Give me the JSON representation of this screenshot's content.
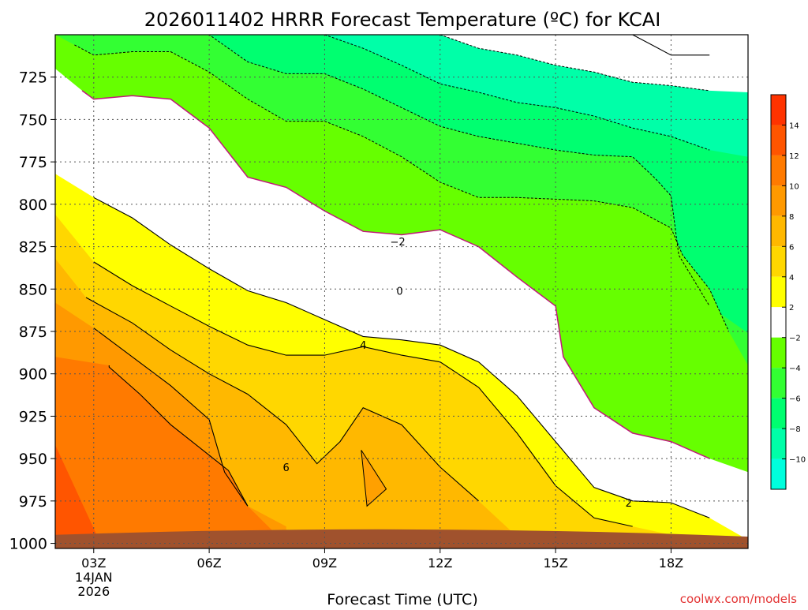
{
  "chart_data": {
    "type": "heatmap",
    "title": "2026011402 HRRR Forecast Temperature (ºC) for KCAI",
    "xlabel": "Forecast Time (UTC)",
    "ylabel": "",
    "credit": "coolwx.com/models",
    "x_ticks": [
      "03Z",
      "06Z",
      "09Z",
      "12Z",
      "15Z",
      "18Z"
    ],
    "x_tick_hours": [
      3,
      6,
      9,
      12,
      15,
      18
    ],
    "x_date_labels": [
      "14JAN",
      "2026"
    ],
    "xlim": [
      2.0,
      20.0
    ],
    "y_scale": "pressure (hPa), reversed",
    "y_ticks": [
      725,
      750,
      775,
      800,
      825,
      850,
      875,
      900,
      925,
      950,
      975,
      1000
    ],
    "ylim": [
      1003,
      700
    ],
    "grid": true,
    "colorbar": {
      "bounds": [
        -12,
        -10,
        -8,
        -6,
        -4,
        -2,
        2,
        4,
        6,
        8,
        10,
        12,
        14,
        16
      ],
      "tick_labels": [
        "14",
        "12",
        "10",
        "8",
        "6",
        "4",
        "2",
        "−2",
        "−4",
        "−6",
        "−8",
        "−10"
      ],
      "colors": [
        "#00ffdd",
        "#00ffa8",
        "#00ff70",
        "#33ff33",
        "#66ff00",
        "#ffffff",
        "#ffff00",
        "#ffd700",
        "#ffb800",
        "#ff9900",
        "#ff7a00",
        "#ff5500",
        "#ff3300"
      ]
    },
    "contour_labels": [
      {
        "text": "−2",
        "hour": 10.9,
        "pressure": 822
      },
      {
        "text": "0",
        "hour": 10.95,
        "pressure": 851
      },
      {
        "text": "4",
        "hour": 10.0,
        "pressure": 883
      },
      {
        "text": "6",
        "hour": 8.0,
        "pressure": 955
      },
      {
        "text": "2",
        "hour": 16.9,
        "pressure": 976
      }
    ],
    "temperature_bands": [
      {
        "label": "10 to 12",
        "color": "#ff7a00",
        "pts": [
          [
            2.0,
            1003
          ],
          [
            2.0,
            890
          ],
          [
            3.4,
            895
          ],
          [
            3.4,
            896
          ],
          [
            4.2,
            912
          ],
          [
            5.0,
            930
          ],
          [
            6.0,
            948
          ],
          [
            6.5,
            957
          ],
          [
            7.0,
            978
          ],
          [
            7.8,
            996
          ],
          [
            7.8,
            1003
          ]
        ]
      },
      {
        "label": "12 to 14",
        "color": "#ff5500",
        "pts": [
          [
            2.0,
            1003
          ],
          [
            2.0,
            942
          ],
          [
            3.2,
            1001
          ],
          [
            3.2,
            1003
          ]
        ]
      },
      {
        "label": "8 to 10",
        "color": "#ff9900",
        "pts": [
          [
            2.0,
            1003
          ],
          [
            2.0,
            858
          ],
          [
            3.0,
            873
          ],
          [
            4.0,
            890
          ],
          [
            5.0,
            907
          ],
          [
            6.0,
            927
          ],
          [
            6.4,
            958
          ],
          [
            7.0,
            978
          ],
          [
            8.0,
            990
          ],
          [
            8.0,
            1003
          ]
        ]
      },
      {
        "label": "6 to 8",
        "color": "#ffb800",
        "pts": [
          [
            2.0,
            1003
          ],
          [
            2.0,
            832
          ],
          [
            2.8,
            855
          ],
          [
            4.0,
            870
          ],
          [
            5.0,
            886
          ],
          [
            6.0,
            900
          ],
          [
            7.0,
            912
          ],
          [
            8.0,
            930
          ],
          [
            8.8,
            953
          ],
          [
            9.4,
            940
          ],
          [
            10.0,
            920
          ],
          [
            11.0,
            930
          ],
          [
            12.0,
            955
          ],
          [
            13.0,
            975
          ],
          [
            14.0,
            996
          ],
          [
            14.0,
            1003
          ]
        ]
      },
      {
        "label": "4 to 6",
        "color": "#ffd700",
        "pts": [
          [
            2.0,
            1003
          ],
          [
            2.0,
            806
          ],
          [
            3.0,
            834
          ],
          [
            4.0,
            848
          ],
          [
            5.0,
            860
          ],
          [
            6.0,
            872
          ],
          [
            7.0,
            883
          ],
          [
            8.0,
            889
          ],
          [
            9.0,
            889
          ],
          [
            10.0,
            884
          ],
          [
            11.0,
            889
          ],
          [
            12.0,
            893
          ],
          [
            13.0,
            908
          ],
          [
            14.0,
            935
          ],
          [
            15.0,
            966
          ],
          [
            16.0,
            985
          ],
          [
            17.0,
            990
          ],
          [
            18.0,
            995
          ],
          [
            18.0,
            1003
          ]
        ]
      },
      {
        "label": "2 to 4",
        "color": "#ffff00",
        "pts": [
          [
            2.0,
            1003
          ],
          [
            2.0,
            782
          ],
          [
            3.0,
            796
          ],
          [
            4.0,
            808
          ],
          [
            5.0,
            824
          ],
          [
            6.0,
            838
          ],
          [
            7.0,
            851
          ],
          [
            8.0,
            858
          ],
          [
            9.0,
            868
          ],
          [
            10.0,
            878
          ],
          [
            11.0,
            880
          ],
          [
            12.0,
            883
          ],
          [
            13.0,
            893
          ],
          [
            14.0,
            913
          ],
          [
            15.0,
            940
          ],
          [
            16.0,
            967
          ],
          [
            17.0,
            975
          ],
          [
            18.0,
            976
          ],
          [
            19.0,
            985
          ],
          [
            20.0,
            998
          ],
          [
            20.0,
            1003
          ]
        ]
      },
      {
        "label": "−2 to 2",
        "color": "#ffffff",
        "pts": [
          [
            2.0,
            1003
          ],
          [
            2.0,
            720
          ],
          [
            2.7,
            733
          ],
          [
            3.0,
            738
          ],
          [
            4.0,
            736
          ],
          [
            5.0,
            738
          ],
          [
            6.0,
            755
          ],
          [
            7.0,
            784
          ],
          [
            8.0,
            790
          ],
          [
            9.0,
            804
          ],
          [
            10.0,
            816
          ],
          [
            11.0,
            818
          ],
          [
            12.0,
            815
          ],
          [
            13.0,
            825
          ],
          [
            14.0,
            843
          ],
          [
            15.0,
            860
          ],
          [
            15.2,
            890
          ],
          [
            16.0,
            920
          ],
          [
            17.0,
            935
          ],
          [
            18.0,
            940
          ],
          [
            19.0,
            950
          ],
          [
            20.0,
            958
          ],
          [
            20.0,
            1003
          ]
        ]
      },
      {
        "label": "−4 to −2",
        "color": "#66ff00",
        "pts": [
          [
            2.0,
            1003
          ],
          [
            2.0,
            700
          ],
          [
            2.5,
            706
          ],
          [
            3.0,
            712
          ],
          [
            4.0,
            710
          ],
          [
            5.0,
            710
          ],
          [
            6.0,
            722
          ],
          [
            7.0,
            738
          ],
          [
            8.0,
            751
          ],
          [
            9.0,
            751
          ],
          [
            10.0,
            760
          ],
          [
            11.0,
            772
          ],
          [
            12.0,
            787
          ],
          [
            13.0,
            796
          ],
          [
            14.0,
            796
          ],
          [
            15.0,
            797
          ],
          [
            16.0,
            798
          ],
          [
            17.0,
            802
          ],
          [
            18.0,
            814
          ],
          [
            18.3,
            830
          ],
          [
            19.0,
            850
          ],
          [
            19.5,
            875
          ],
          [
            20.0,
            895
          ],
          [
            20.0,
            1003
          ]
        ]
      },
      {
        "label": "−6 to −4",
        "color": "#33ff33",
        "pts": [
          [
            2.0,
            1003
          ],
          [
            2.0,
            700
          ],
          [
            3.0,
            700
          ],
          [
            5.0,
            700
          ],
          [
            6.0,
            700
          ],
          [
            7.0,
            716
          ],
          [
            8.0,
            723
          ],
          [
            9.0,
            723
          ],
          [
            10.0,
            732
          ],
          [
            11.0,
            743
          ],
          [
            12.0,
            754
          ],
          [
            13.0,
            760
          ],
          [
            14.0,
            764
          ],
          [
            15.0,
            768
          ],
          [
            16.0,
            771
          ],
          [
            17.0,
            772
          ],
          [
            17.6,
            785
          ],
          [
            18.0,
            795
          ],
          [
            18.2,
            830
          ],
          [
            19.0,
            860
          ],
          [
            20.0,
            876
          ],
          [
            20.0,
            1003
          ]
        ]
      },
      {
        "label": "−8 to −6",
        "color": "#00ff70",
        "pts": [
          [
            2.0,
            1003
          ],
          [
            2.0,
            700
          ],
          [
            9.0,
            700
          ],
          [
            10.0,
            708
          ],
          [
            11.0,
            718
          ],
          [
            12.0,
            729
          ],
          [
            13.0,
            734
          ],
          [
            14.0,
            740
          ],
          [
            15.0,
            743
          ],
          [
            16.0,
            748
          ],
          [
            17.0,
            755
          ],
          [
            18.0,
            760
          ],
          [
            19.0,
            768
          ],
          [
            20.0,
            772
          ],
          [
            20.0,
            1003
          ]
        ]
      },
      {
        "label": "−10 to −8",
        "color": "#00ffa8",
        "pts": [
          [
            2.0,
            1003
          ],
          [
            2.0,
            700
          ],
          [
            12.0,
            700
          ],
          [
            13.0,
            708
          ],
          [
            14.0,
            712
          ],
          [
            15.0,
            718
          ],
          [
            16.0,
            722
          ],
          [
            17.0,
            728
          ],
          [
            18.0,
            730
          ],
          [
            19.0,
            733
          ],
          [
            20.0,
            734
          ],
          [
            20.0,
            1003
          ]
        ]
      },
      {
        "label": "−12 to −10",
        "color": "#00ffdd",
        "pts": [
          [
            2.0,
            1003
          ],
          [
            2.0,
            700
          ],
          [
            17.0,
            700
          ],
          [
            17.5,
            706
          ],
          [
            18.0,
            712
          ],
          [
            19.0,
            712
          ],
          [
            20.0,
            718
          ],
          [
            20.0,
            1003
          ]
        ]
      }
    ]
  }
}
